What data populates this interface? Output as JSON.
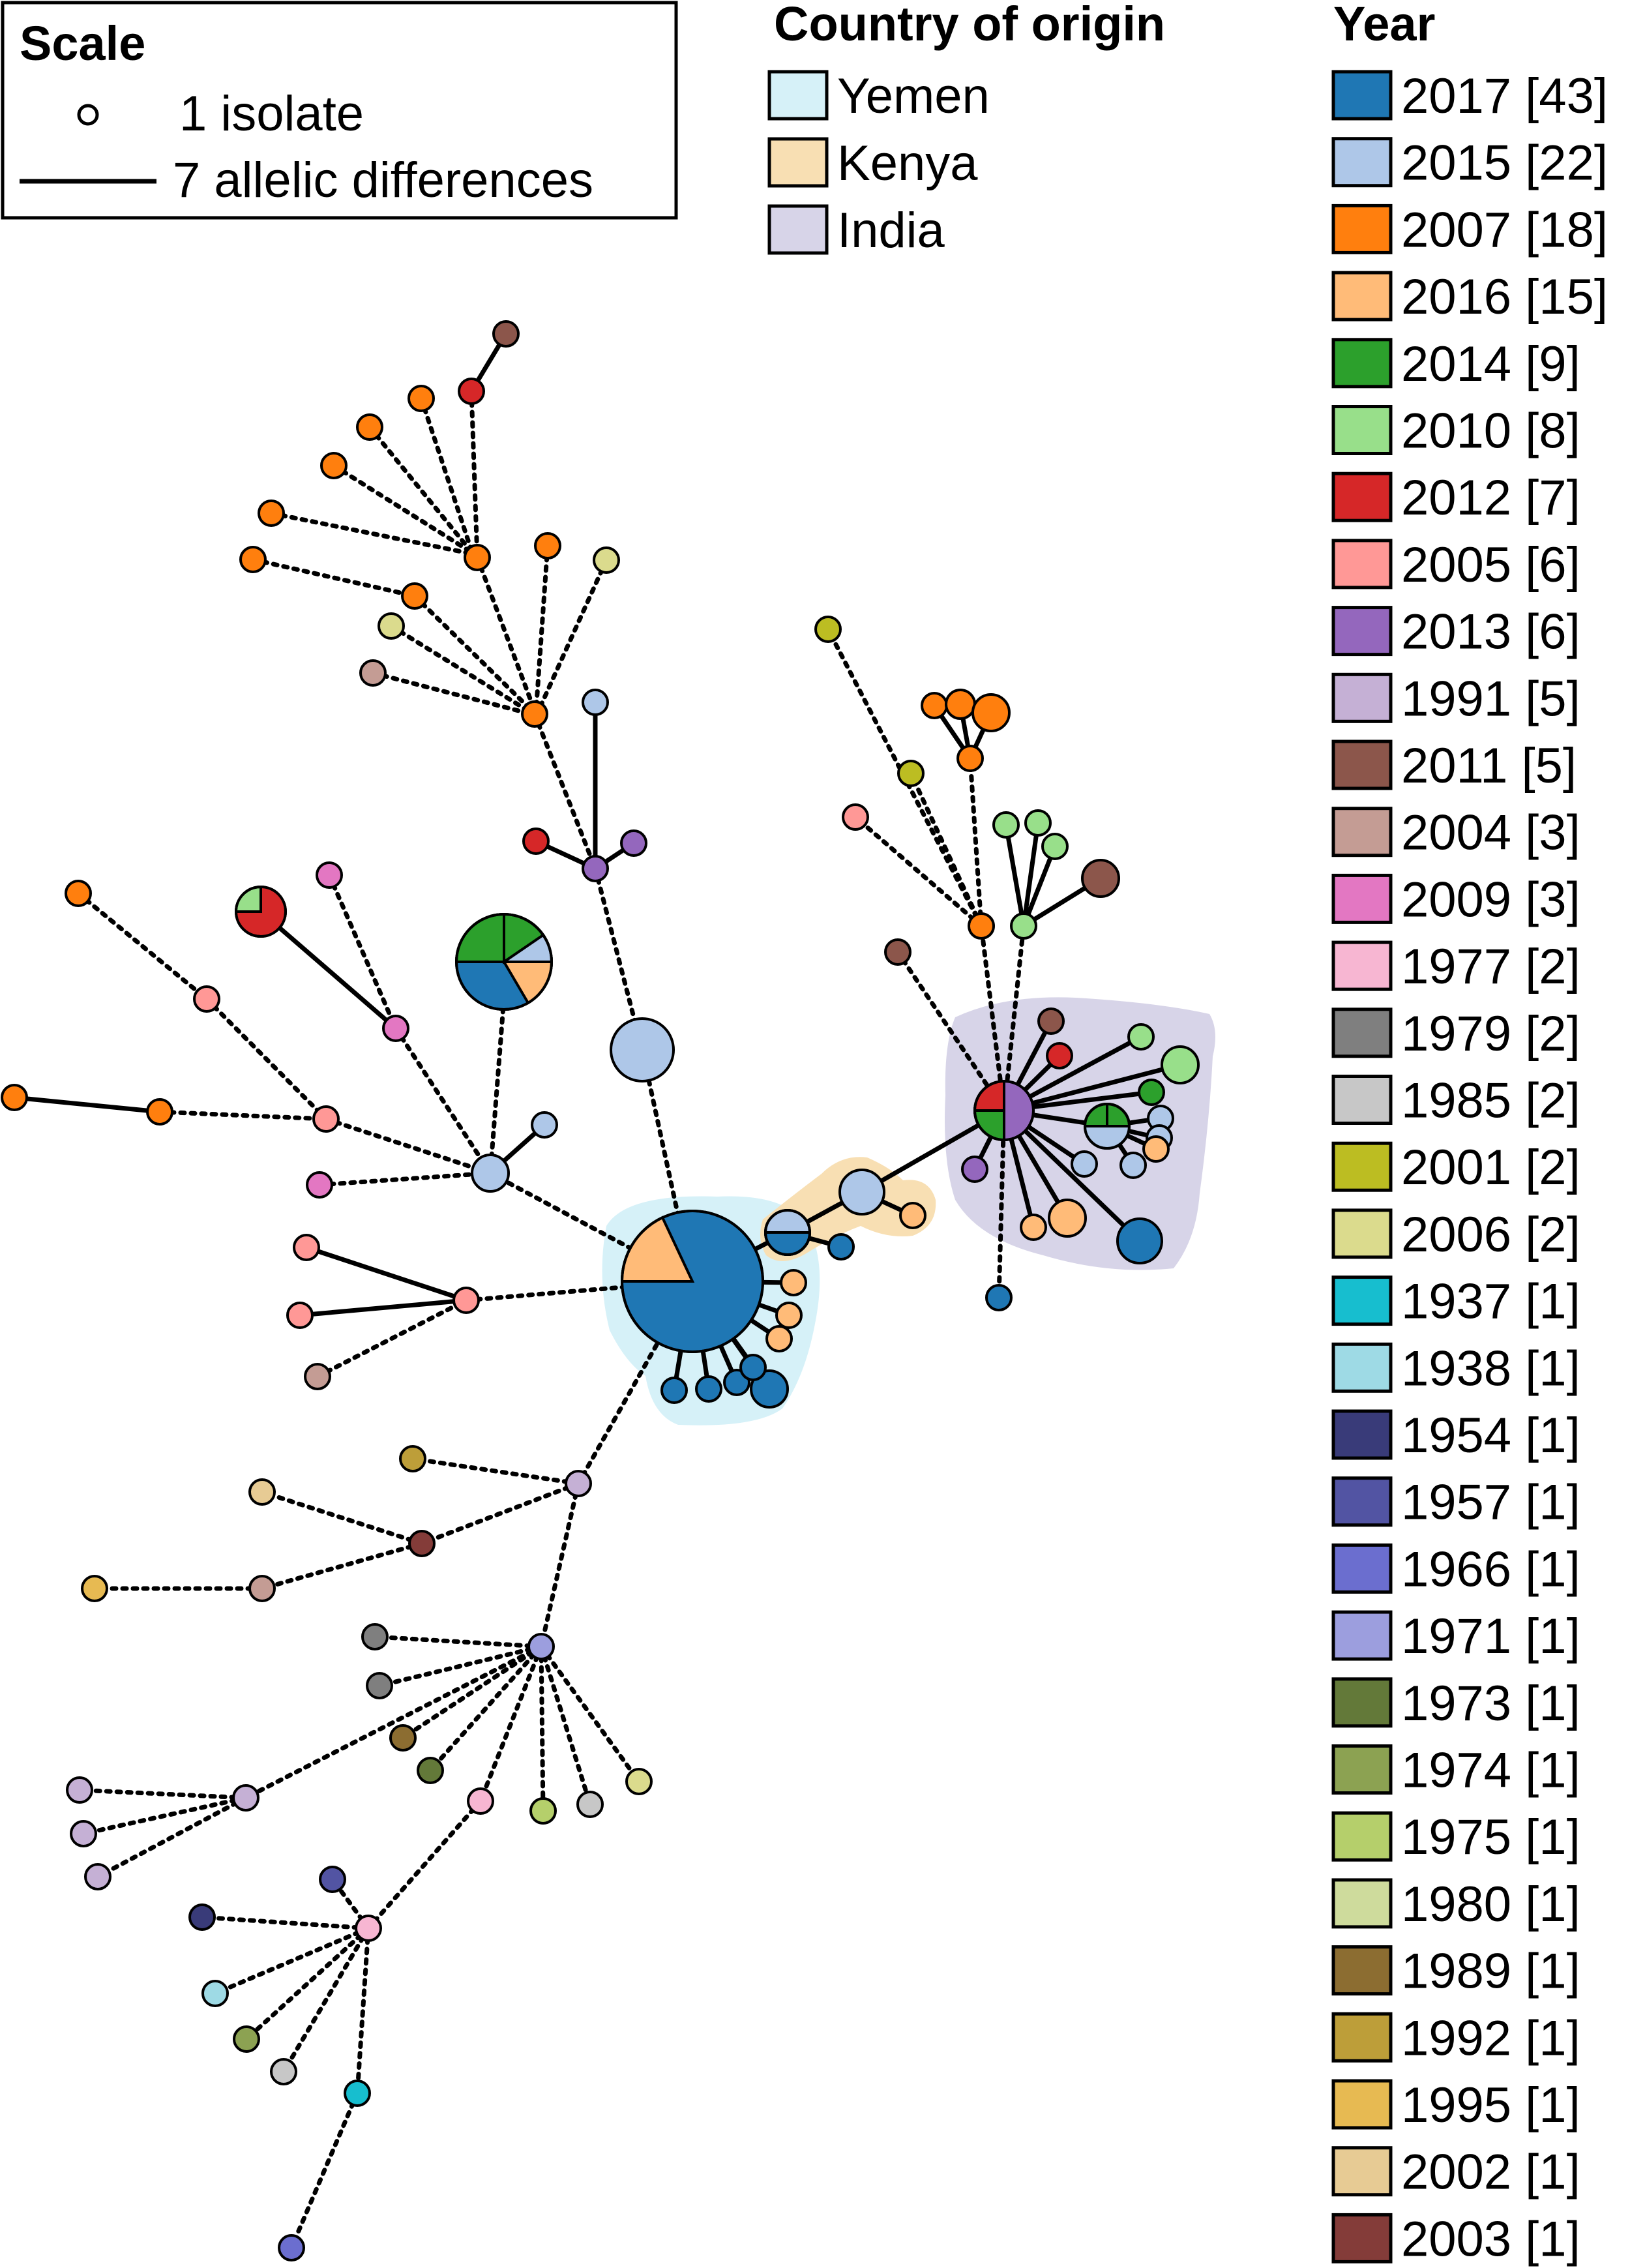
{
  "scale_legend": {
    "title": "Scale",
    "isolate_label": "1 isolate",
    "edge_label": "7 allelic differences"
  },
  "country_legend": {
    "title": "Country of origin",
    "items": [
      {
        "label": "Yemen",
        "color": "#d6f1f8"
      },
      {
        "label": "Kenya",
        "color": "#f8dfb3"
      },
      {
        "label": "India",
        "color": "#d7d4e8"
      }
    ]
  },
  "year_legend": {
    "title": "Year",
    "items": [
      {
        "label": "2017 [43]",
        "color": "#1f77b4"
      },
      {
        "label": "2015 [22]",
        "color": "#aec7e8"
      },
      {
        "label": "2007 [18]",
        "color": "#ff7f0e"
      },
      {
        "label": "2016 [15]",
        "color": "#ffbb78"
      },
      {
        "label": "2014 [9]",
        "color": "#2ca02c"
      },
      {
        "label": "2010 [8]",
        "color": "#98df8a"
      },
      {
        "label": "2012 [7]",
        "color": "#d62728"
      },
      {
        "label": "2005 [6]",
        "color": "#ff9896"
      },
      {
        "label": "2013 [6]",
        "color": "#9467bd"
      },
      {
        "label": "1991 [5]",
        "color": "#c5b0d5"
      },
      {
        "label": "2011 [5]",
        "color": "#8c564b"
      },
      {
        "label": "2004 [3]",
        "color": "#c49c94"
      },
      {
        "label": "2009 [3]",
        "color": "#e377c2"
      },
      {
        "label": "1977 [2]",
        "color": "#f7b6d2"
      },
      {
        "label": "1979 [2]",
        "color": "#7f7f7f"
      },
      {
        "label": "1985 [2]",
        "color": "#c7c7c7"
      },
      {
        "label": "2001 [2]",
        "color": "#bcbd22"
      },
      {
        "label": "2006 [2]",
        "color": "#dbdb8d"
      },
      {
        "label": "1937 [1]",
        "color": "#17becf"
      },
      {
        "label": "1938 [1]",
        "color": "#9edae5"
      },
      {
        "label": "1954 [1]",
        "color": "#393b79"
      },
      {
        "label": "1957 [1]",
        "color": "#5254a3"
      },
      {
        "label": "1966 [1]",
        "color": "#6b6ecf"
      },
      {
        "label": "1971 [1]",
        "color": "#9c9ede"
      },
      {
        "label": "1973 [1]",
        "color": "#637939"
      },
      {
        "label": "1974 [1]",
        "color": "#8ca252"
      },
      {
        "label": "1975 [1]",
        "color": "#b5cf6b"
      },
      {
        "label": "1980 [1]",
        "color": "#cedb9c"
      },
      {
        "label": "1989 [1]",
        "color": "#8c6d31"
      },
      {
        "label": "1992 [1]",
        "color": "#bd9e39"
      },
      {
        "label": "1995 [1]",
        "color": "#e7ba52"
      },
      {
        "label": "2002 [1]",
        "color": "#e7cb94"
      },
      {
        "label": "2003 [1]",
        "color": "#843c39"
      }
    ]
  }
}
